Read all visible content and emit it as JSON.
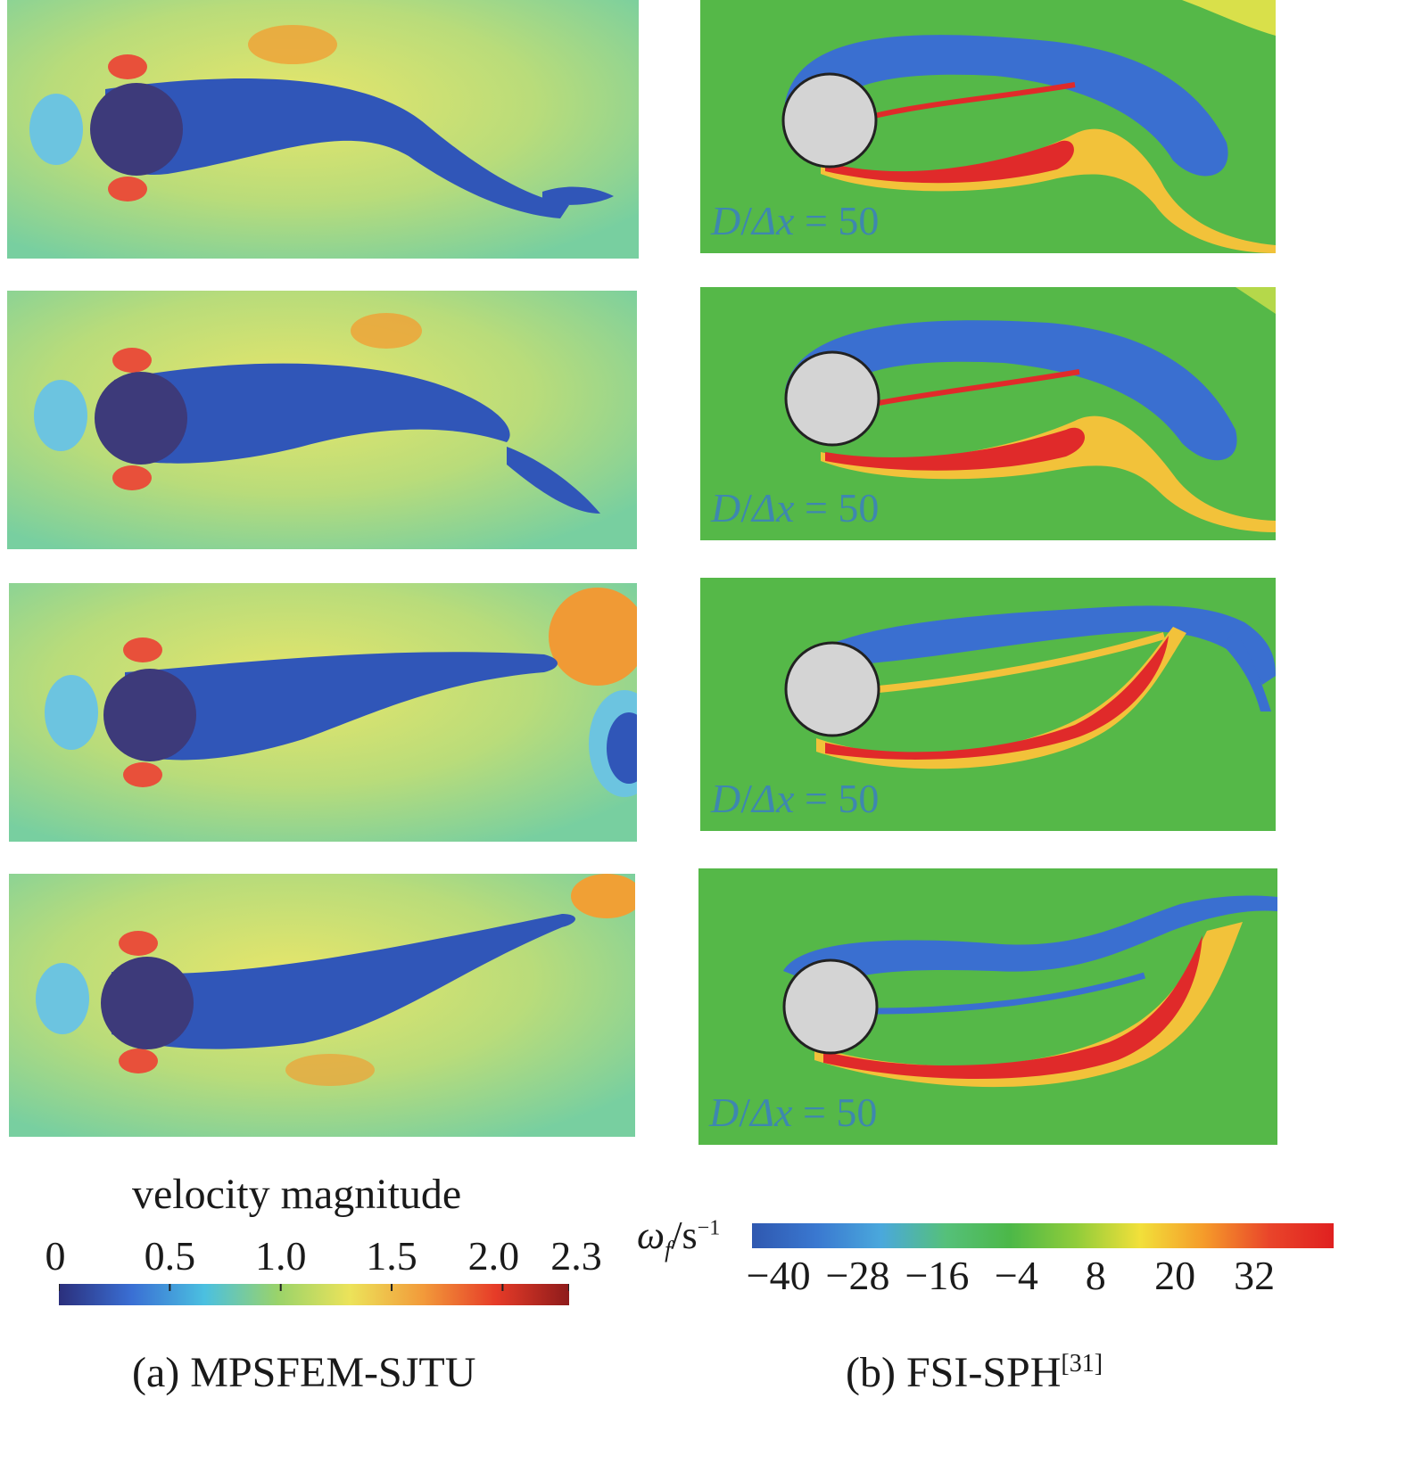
{
  "left_panel": {
    "colorbar": {
      "title": "velocity magnitude",
      "ticks": [
        "0",
        "0.5",
        "1.0",
        "1.5",
        "2.0",
        "2.3"
      ],
      "colors": [
        "#2b2f7c",
        "#3a6fd4",
        "#4bc0e0",
        "#9ad36a",
        "#ece35a",
        "#f29a3a",
        "#e63b28",
        "#8e1b1b"
      ]
    },
    "caption": "(a) MPSFEM-SJTU",
    "snapshot_count": 4
  },
  "right_panel": {
    "colorbar": {
      "symbol": "ω",
      "subscript": "f",
      "unit": "/s",
      "unit_exponent": "−1",
      "ticks": [
        "−40",
        "−28",
        "−16",
        "−4",
        "8",
        "20",
        "32"
      ],
      "colors": [
        "#2f58b0",
        "#3a78d0",
        "#4aa8dc",
        "#55c07a",
        "#4cb848",
        "#8fcc3a",
        "#f2e03a",
        "#f59a2a",
        "#e9452a",
        "#e02020"
      ]
    },
    "resolution_label": {
      "lhs_num": "D",
      "lhs_den": "Δx",
      "eq": "=",
      "value": "50"
    },
    "caption_main": "(b) FSI-SPH",
    "caption_ref": "[31]",
    "snapshot_count": 4
  },
  "colors": {
    "cylinder_left": "#3d3a7a",
    "cylinder_right": "#d4d4d4",
    "bg_left": "#8ed39a",
    "bg_right": "#55b848",
    "wake_blue": "#2e4fb0",
    "wake_red": "#e02a2a",
    "yellow": "#f0e24a",
    "orange": "#f0a035"
  }
}
